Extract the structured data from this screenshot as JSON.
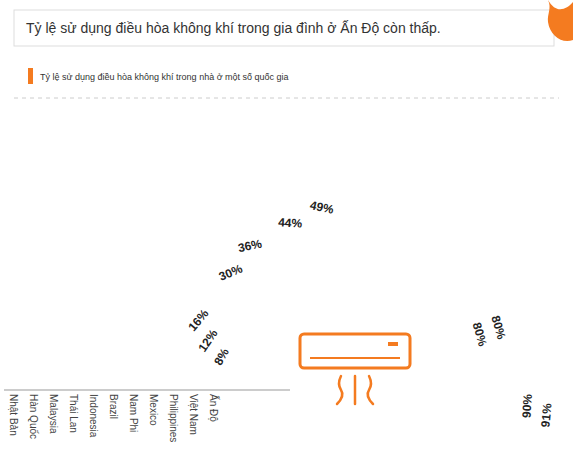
{
  "chart_data": {
    "type": "radial_bar",
    "title": "Tỷ lệ sử dụng điều hòa không khí trong gia đình ở Ấn Độ còn thấp.",
    "subtitle": "Tỷ lệ sử dụng điều hòa không khí trong nhà ở một số quốc gia",
    "categories": [
      "Nhật Bản",
      "Hàn Quốc",
      "Malaysia",
      "Thái Lan",
      "Indonesia",
      "Brazil",
      "Nam Phi",
      "Mexico",
      "Philippines",
      "Việt Nam",
      "Ấn Độ"
    ],
    "values": [
      91,
      90,
      80,
      80,
      49,
      44,
      36,
      30,
      16,
      12,
      8
    ],
    "value_labels": [
      "91%",
      "90%",
      "80%",
      "80%",
      "49%",
      "44%",
      "36%",
      "30%",
      "16%",
      "12%",
      "8%"
    ],
    "colors": [
      "#f26b1d",
      "#f3772a",
      "#f48337",
      "#f58f45",
      "#f69b54",
      "#f7a763",
      "#f8b373",
      "#f9bf84",
      "#facb96",
      "#fbd6a8",
      "#fce1bb"
    ],
    "ylim": [
      0,
      100
    ],
    "data_labels": true,
    "tick_labels": false
  }
}
